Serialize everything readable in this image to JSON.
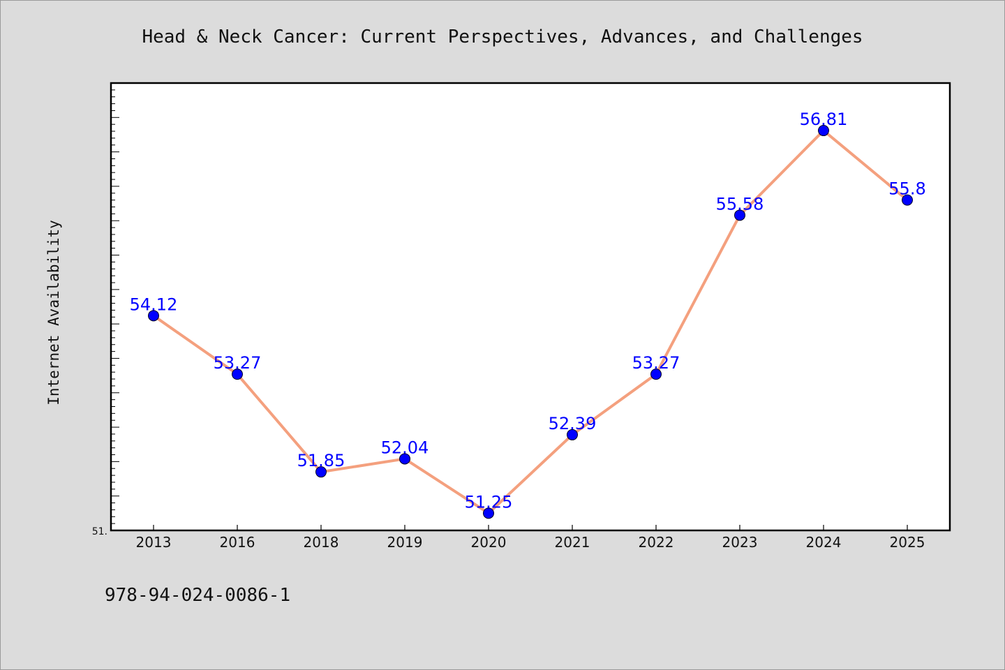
{
  "chart_data": {
    "type": "line",
    "title": "Head & Neck Cancer: Current Perspectives, Advances, and Challenges",
    "xlabel": "",
    "ylabel": "Internet Availability",
    "categories": [
      "2013",
      "2016",
      "2018",
      "2019",
      "2020",
      "2021",
      "2022",
      "2023",
      "2024",
      "2025"
    ],
    "series": [
      {
        "values": [
          54.12,
          53.27,
          51.85,
          52.04,
          51.25,
          52.39,
          53.27,
          55.58,
          56.81,
          55.8
        ],
        "data_labels": [
          "54.12",
          "53.27",
          "51.85",
          "52.04",
          "51.25",
          "52.39",
          "53.27",
          "55.58",
          "56.81",
          "55.8"
        ]
      }
    ],
    "ylim": [
      51.0,
      57.5
    ],
    "y_tick_label": "51.",
    "grid": false,
    "line_color": "#f4a07e",
    "marker_color": "#0000ff",
    "label_color": "#0000ff"
  },
  "footer": {
    "isbn": "978-94-024-0086-1"
  }
}
